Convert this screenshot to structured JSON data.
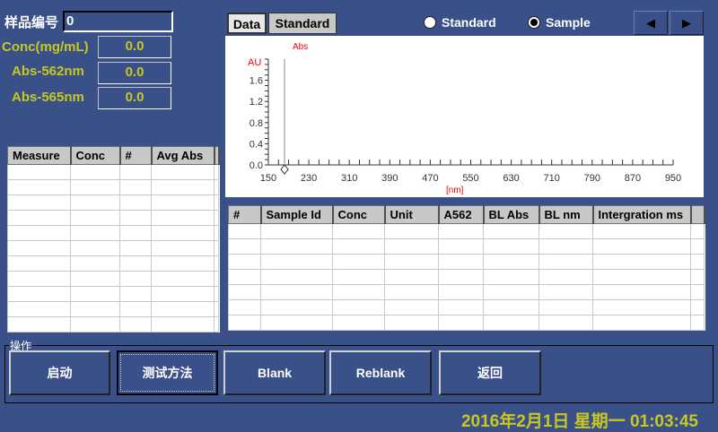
{
  "sample": {
    "label": "样品编号",
    "value": "0"
  },
  "readings": [
    {
      "label": "Conc(mg/mL)",
      "value": "0.0"
    },
    {
      "label": "Abs-562nm",
      "value": "0.0"
    },
    {
      "label": "Abs-565nm",
      "value": "0.0"
    }
  ],
  "left_table": {
    "headers": [
      "Measure",
      "Conc",
      "#",
      "Avg Abs"
    ],
    "rows": 11
  },
  "chart_panel": {
    "tabs": [
      {
        "label": "Data",
        "active": true
      },
      {
        "label": "Standard",
        "active": false
      }
    ],
    "radios": [
      {
        "label": "Standard",
        "selected": false
      },
      {
        "label": "Sample",
        "selected": true
      }
    ],
    "nav": {
      "prev": "◀",
      "next": "▶"
    }
  },
  "chart_data": {
    "type": "line",
    "title": "Abs",
    "ylabel": "AU",
    "xlabel": "[nm]",
    "xlim": [
      150,
      950
    ],
    "ylim": [
      0,
      2.0
    ],
    "xticks": [
      "150",
      "230",
      "310",
      "390",
      "470",
      "550",
      "630",
      "710",
      "790",
      "870",
      "950"
    ],
    "yticks": [
      "0.0",
      "0.4",
      "0.8",
      "1.2",
      "1.6"
    ],
    "cursor_nm": 182,
    "series": [],
    "colors": {
      "labels": "#ff0000",
      "axis": "#333333",
      "cursor": "#888888"
    }
  },
  "right_table": {
    "headers": [
      "#",
      "Sample Id",
      "Conc",
      "Unit",
      "A562",
      "BL Abs",
      "BL nm",
      "Intergration ms"
    ],
    "rows": 7
  },
  "operations": {
    "group_label": "操作",
    "buttons": [
      "启动",
      "测试方法",
      "Blank",
      "Reblank",
      "返回"
    ]
  },
  "status": {
    "datetime": "2016年2月1日 星期一 01:03:45"
  }
}
